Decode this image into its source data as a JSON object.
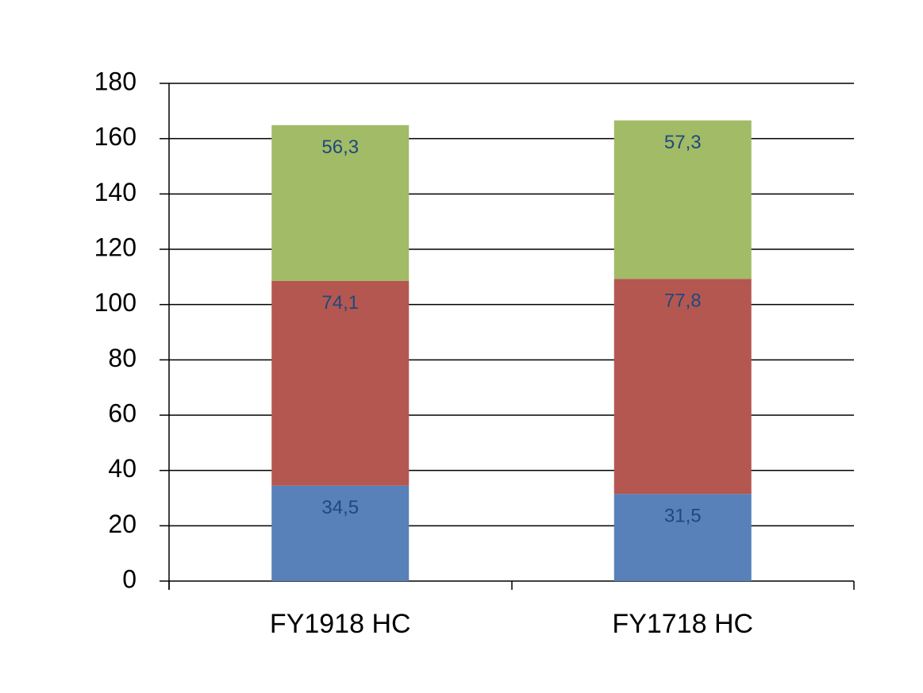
{
  "chart_data": {
    "type": "stacked_bar",
    "categories": [
      "FY1918 HC",
      "FY1718 HC"
    ],
    "series": [
      {
        "color": "#5880b9",
        "values": [
          34.5,
          31.5
        ],
        "value_labels": [
          "34,5",
          "31,5"
        ]
      },
      {
        "color": "#b45751",
        "values": [
          74.1,
          77.8
        ],
        "value_labels": [
          "74,1",
          "77,8"
        ]
      },
      {
        "color": "#a2bb66",
        "values": [
          56.3,
          57.3
        ],
        "value_labels": [
          "56,3",
          "57,3"
        ]
      }
    ],
    "ylim": [
      0,
      180
    ],
    "yticks": [
      0,
      20,
      40,
      60,
      80,
      100,
      120,
      140,
      160,
      180
    ],
    "grid": true
  }
}
